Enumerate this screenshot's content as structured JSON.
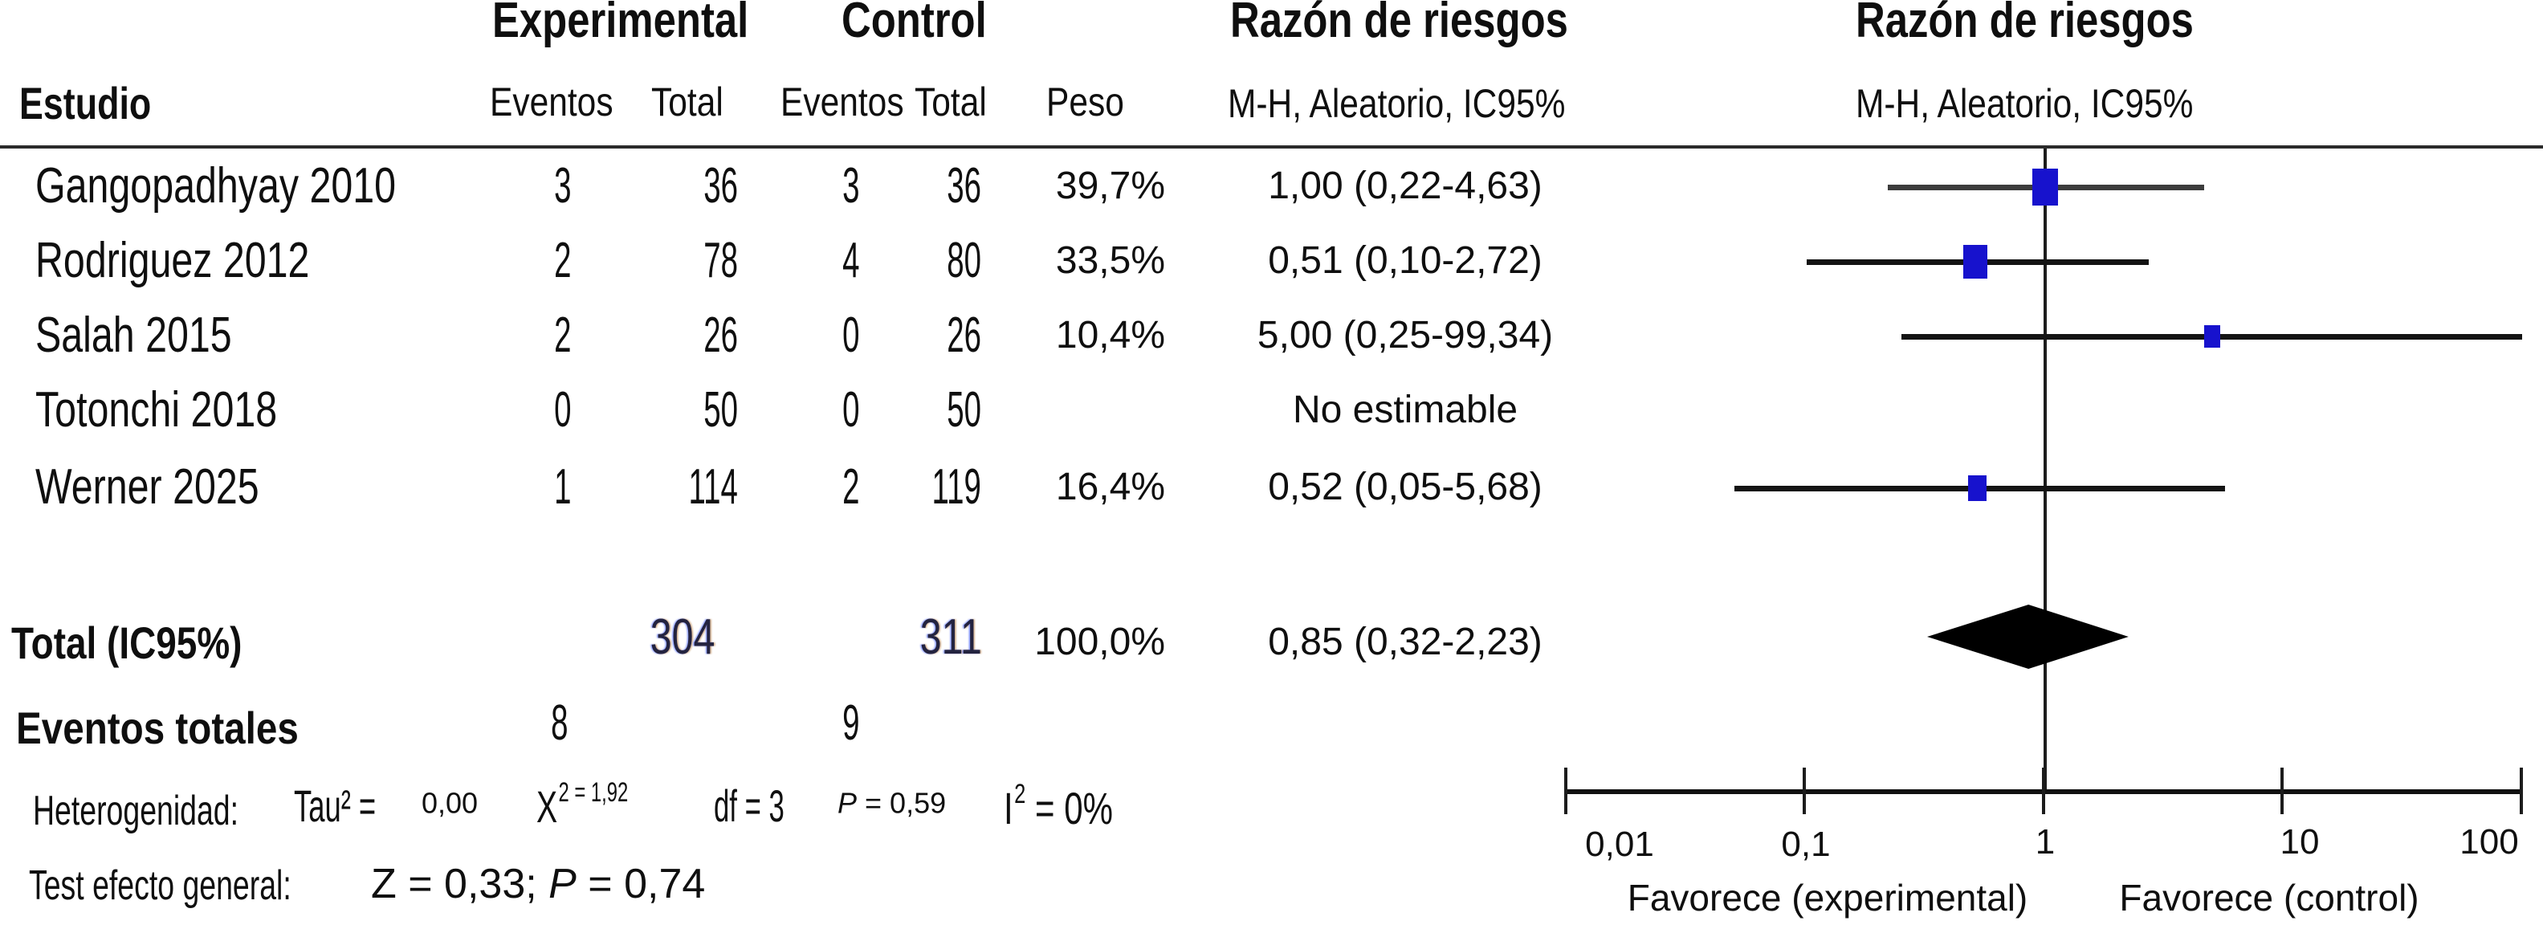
{
  "header": {
    "experimental": "Experimental",
    "control": "Control",
    "risk_ratio_left": "Razón de riesgos",
    "risk_ratio_right": "Razón de riesgos",
    "estudio": "Estudio",
    "exp_eventos": "Eventos",
    "exp_total": "Total",
    "ctrl_eventos": "Eventos",
    "ctrl_total": "Total",
    "peso": "Peso",
    "mh_left": "M-H, Aleatorio, IC95%",
    "mh_right": "M-H, Aleatorio, IC95%"
  },
  "studies": [
    {
      "name": "Gangopadhyay 2010",
      "exp_events": "3",
      "exp_total": "36",
      "ctrl_events": "3",
      "ctrl_total": "36",
      "weight": "39,7%",
      "rr_ci": "1,00 (0,22-4,63)"
    },
    {
      "name": "Rodriguez 2012",
      "exp_events": "2",
      "exp_total": "78",
      "ctrl_events": "4",
      "ctrl_total": "80",
      "weight": "33,5%",
      "rr_ci": "0,51 (0,10-2,72)"
    },
    {
      "name": "Salah 2015",
      "exp_events": "2",
      "exp_total": "26",
      "ctrl_events": "0",
      "ctrl_total": "26",
      "weight": "10,4%",
      "rr_ci": "5,00 (0,25-99,34)"
    },
    {
      "name": "Totonchi 2018",
      "exp_events": "0",
      "exp_total": "50",
      "ctrl_events": "0",
      "ctrl_total": "50",
      "weight": "",
      "rr_ci": "No estimable"
    },
    {
      "name": "Werner 2025",
      "exp_events": "1",
      "exp_total": "114",
      "ctrl_events": "2",
      "ctrl_total": "119",
      "weight": "16,4%",
      "rr_ci": "0,52 (0,05-5,68)"
    }
  ],
  "total_row": {
    "label": "Total (IC95%)",
    "exp_total": "304",
    "ctrl_total": "311",
    "weight": "100,0%",
    "rr_ci": "0,85 (0,32-2,23)"
  },
  "total_events_row": {
    "label": "Eventos totales",
    "exp_events": "8",
    "ctrl_events": "9"
  },
  "heterogeneity": {
    "label": "Heterogenidad:",
    "tau_label": "Tau² =",
    "tau_value": "0,00",
    "chi_base": "X",
    "chi_sup": "2 = 1,92",
    "df": "df = 3",
    "p_italic": "P",
    "p_rest": " = 0,59",
    "i2_base": "I",
    "i2_sup": "2",
    "i2_rest": " = 0%"
  },
  "overall_test": {
    "label": "Test efecto general:",
    "z_part": "Z = 0,33; ",
    "p_italic": "P",
    "p_rest": " = 0,74"
  },
  "axis": {
    "tick_labels": [
      "0,01",
      "0,1",
      "1",
      "10",
      "100"
    ],
    "favor_left": "Favorece (experimental)",
    "favor_right": "Favorece (control)"
  },
  "colors": {
    "square_blue": "#1712cd",
    "ci_gray": "#3c3c3c",
    "ci_black": "#141414",
    "diamond": "#000000"
  },
  "chart_data": {
    "type": "scatter",
    "subtype": "forest-plot",
    "title": "Razón de riesgos",
    "effect_measure": "M-H, Aleatorio, IC95%",
    "x_scale": "log10",
    "xlim": [
      0.01,
      100
    ],
    "x_ticks": [
      0.01,
      0.1,
      1,
      10,
      100
    ],
    "x_tick_labels": [
      "0,01",
      "0,1",
      "1",
      "10",
      "100"
    ],
    "xlabel_left": "Favorece (experimental)",
    "xlabel_right": "Favorece (control)",
    "studies": [
      {
        "name": "Gangopadhyay 2010",
        "exp_events": 3,
        "exp_total": 36,
        "ctrl_events": 3,
        "ctrl_total": 36,
        "rr": 1.0,
        "ci_low": 0.22,
        "ci_high": 4.63,
        "weight_pct": 39.7,
        "ci_color": "#3c3c3c"
      },
      {
        "name": "Rodriguez 2012",
        "exp_events": 2,
        "exp_total": 78,
        "ctrl_events": 4,
        "ctrl_total": 80,
        "rr": 0.51,
        "ci_low": 0.1,
        "ci_high": 2.72,
        "weight_pct": 33.5,
        "ci_color": "#141414"
      },
      {
        "name": "Salah 2015",
        "exp_events": 2,
        "exp_total": 26,
        "ctrl_events": 0,
        "ctrl_total": 26,
        "rr": 5.0,
        "ci_low": 0.25,
        "ci_high": 99.34,
        "weight_pct": 10.4,
        "ci_color": "#141414"
      },
      {
        "name": "Totonchi 2018",
        "exp_events": 0,
        "exp_total": 50,
        "ctrl_events": 0,
        "ctrl_total": 50,
        "rr": null,
        "ci_low": null,
        "ci_high": null,
        "weight_pct": null,
        "note": "No estimable"
      },
      {
        "name": "Werner 2025",
        "exp_events": 1,
        "exp_total": 114,
        "ctrl_events": 2,
        "ctrl_total": 119,
        "rr": 0.52,
        "ci_low": 0.05,
        "ci_high": 5.68,
        "weight_pct": 16.4,
        "ci_color": "#141414"
      }
    ],
    "total": {
      "label": "Total (IC95%)",
      "exp_total": 304,
      "ctrl_total": 311,
      "total_events_exp": 8,
      "total_events_ctrl": 9,
      "rr": 0.85,
      "ci_low": 0.32,
      "ci_high": 2.23,
      "weight_pct": 100.0
    },
    "heterogeneity": {
      "tau2": 0.0,
      "chi2": 1.92,
      "df": 3,
      "p": 0.59,
      "i2_pct": 0
    },
    "overall_effect": {
      "z": 0.33,
      "p": 0.74
    }
  }
}
